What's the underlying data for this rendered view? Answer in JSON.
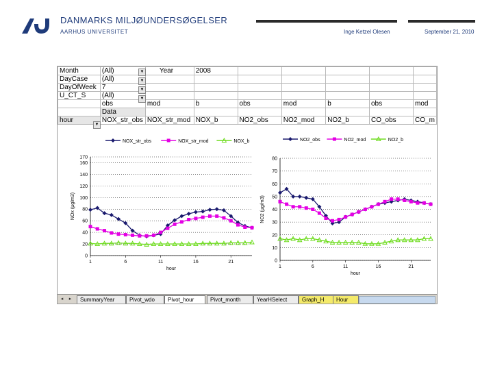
{
  "header": {
    "org_name": "DANMARKS MILJØUNDERSØGELSER",
    "university": "AARHUS UNIVERSITET",
    "author": "Inge Ketzel Olesen",
    "date": "September 21, 2010",
    "brand_color": "#1f3b7a"
  },
  "pivot": {
    "filters": [
      {
        "field": "Month",
        "value": "(All)"
      },
      {
        "field": "DayCase",
        "value": "(All)"
      },
      {
        "field": "DayOfWeek",
        "value": "7"
      },
      {
        "field": "U_CT_S",
        "value": "(All)"
      }
    ],
    "year_label": "Year",
    "year_value": "2008",
    "col_group_row": [
      "obs",
      "mod",
      "b",
      "obs",
      "mod",
      "b",
      "obs",
      "mod"
    ],
    "data_label": "Data",
    "row_field": "hour",
    "col_headers": [
      "NOX_str_obs",
      "NOX_str_mod",
      "NOX_b",
      "NO2_obs",
      "NO2_mod",
      "NO2_b",
      "CO_obs",
      "CO_m"
    ]
  },
  "chart_data": [
    {
      "type": "line",
      "legend": [
        "NOX_str_obs",
        "NOX_str_mod",
        "NOX_b"
      ],
      "legend_position": "top",
      "xlabel": "hour",
      "ylabel": "NOx (µg/m3)",
      "x": [
        1,
        2,
        3,
        4,
        5,
        6,
        7,
        8,
        9,
        10,
        11,
        12,
        13,
        14,
        15,
        16,
        17,
        18,
        19,
        20,
        21,
        22,
        23,
        24
      ],
      "x_ticks": [
        1,
        6,
        11,
        16,
        21
      ],
      "ylim": [
        0,
        170
      ],
      "y_ticks": [
        0,
        20,
        40,
        60,
        80,
        100,
        120,
        140,
        160,
        170
      ],
      "grid": "dotted-horizontal",
      "series": [
        {
          "name": "NOX_str_obs",
          "color": "#1a1a6e",
          "marker": "diamond",
          "values": [
            79,
            82,
            73,
            70,
            63,
            56,
            43,
            35,
            33,
            35,
            37,
            52,
            61,
            68,
            72,
            75,
            76,
            79,
            80,
            78,
            68,
            57,
            51,
            48
          ]
        },
        {
          "name": "NOX_str_mod",
          "color": "#e400e4",
          "marker": "square",
          "values": [
            50,
            46,
            43,
            39,
            37,
            36,
            35,
            34,
            34,
            35,
            40,
            47,
            54,
            58,
            62,
            64,
            66,
            68,
            68,
            65,
            60,
            53,
            49,
            48
          ]
        },
        {
          "name": "NOX_b",
          "color": "#6edc1e",
          "marker": "triangle",
          "values": [
            21,
            20,
            21,
            21,
            22,
            21,
            21,
            20,
            19,
            20,
            20,
            20,
            20,
            20,
            20,
            20,
            21,
            21,
            21,
            21,
            22,
            22,
            22,
            23
          ]
        }
      ]
    },
    {
      "type": "line",
      "legend": [
        "NO2_obs",
        "NO2_mod",
        "NO2_b"
      ],
      "legend_position": "top",
      "xlabel": "hour",
      "ylabel": "NO2 (µg/m3)",
      "x": [
        1,
        2,
        3,
        4,
        5,
        6,
        7,
        8,
        9,
        10,
        11,
        12,
        13,
        14,
        15,
        16,
        17,
        18,
        19,
        20,
        21,
        22,
        23,
        24
      ],
      "x_ticks": [
        1,
        6,
        11,
        16,
        21
      ],
      "ylim": [
        0,
        80
      ],
      "y_ticks": [
        0,
        10,
        20,
        30,
        40,
        50,
        60,
        70,
        80
      ],
      "grid": "dotted-horizontal",
      "series": [
        {
          "name": "NO2_obs",
          "color": "#1a1a6e",
          "marker": "diamond",
          "values": [
            53,
            56,
            50,
            50,
            49,
            48,
            42,
            35,
            29,
            30,
            34,
            36,
            38,
            40,
            42,
            44,
            45,
            46,
            47,
            48,
            47,
            46,
            45,
            44
          ]
        },
        {
          "name": "NO2_mod",
          "color": "#e400e4",
          "marker": "square",
          "values": [
            46,
            44,
            42,
            42,
            41,
            40,
            37,
            33,
            31,
            32,
            34,
            36,
            38,
            40,
            42,
            44,
            46,
            48,
            48,
            47,
            46,
            45,
            45,
            44
          ]
        },
        {
          "name": "NO2_b",
          "color": "#6edc1e",
          "marker": "triangle",
          "values": [
            17,
            16,
            17,
            16,
            17,
            17,
            16,
            15,
            14,
            14,
            14,
            14,
            14,
            13,
            13,
            13,
            14,
            15,
            16,
            16,
            16,
            16,
            17,
            17
          ]
        }
      ]
    }
  ],
  "sheet_tabs": {
    "items": [
      {
        "label": "SummaryYear",
        "state": "normal"
      },
      {
        "label": "Pivot_wdo",
        "state": "normal"
      },
      {
        "label": "Pivot_hour",
        "state": "active"
      },
      {
        "label": "Pivot_month",
        "state": "normal"
      },
      {
        "label": "YearHSelect",
        "state": "normal"
      },
      {
        "label": "Graph_H",
        "state": "yellow"
      },
      {
        "label": "Hour",
        "state": "yellow"
      }
    ],
    "nav_buttons": [
      "◂",
      "▸"
    ]
  }
}
